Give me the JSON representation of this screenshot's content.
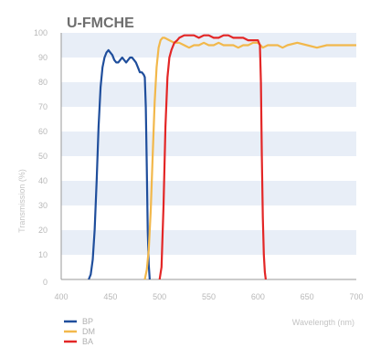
{
  "chart_data": {
    "type": "line",
    "title": "U-FMCHE",
    "xlabel": "Wavelength (nm)",
    "ylabel": "Transmission (%)",
    "xlim": [
      400,
      700
    ],
    "ylim": [
      0,
      100
    ],
    "x_ticks": [
      "400",
      "450",
      "500",
      "550",
      "600",
      "650",
      "700"
    ],
    "y_ticks": [
      "0",
      "10",
      "20",
      "30",
      "40",
      "50",
      "60",
      "70",
      "80",
      "90",
      "100"
    ],
    "y_label_0": "0",
    "grid": "alternating horizontal bands",
    "legend_position": "bottom-left",
    "series": [
      {
        "name": "BP",
        "color": "#1f4e9c",
        "points": [
          [
            428,
            0
          ],
          [
            430,
            2
          ],
          [
            432,
            8
          ],
          [
            434,
            20
          ],
          [
            436,
            40
          ],
          [
            438,
            62
          ],
          [
            440,
            78
          ],
          [
            442,
            86
          ],
          [
            444,
            90
          ],
          [
            446,
            92
          ],
          [
            448,
            93
          ],
          [
            450,
            92
          ],
          [
            452,
            91
          ],
          [
            454,
            89
          ],
          [
            456,
            88
          ],
          [
            458,
            88
          ],
          [
            460,
            89
          ],
          [
            462,
            90
          ],
          [
            464,
            89
          ],
          [
            466,
            88
          ],
          [
            468,
            89
          ],
          [
            470,
            90
          ],
          [
            472,
            90
          ],
          [
            474,
            89
          ],
          [
            476,
            88
          ],
          [
            478,
            86
          ],
          [
            480,
            84
          ],
          [
            482,
            84
          ],
          [
            484,
            83
          ],
          [
            485,
            82
          ],
          [
            486,
            70
          ],
          [
            487,
            45
          ],
          [
            488,
            20
          ],
          [
            489,
            6
          ],
          [
            490,
            0
          ]
        ]
      },
      {
        "name": "DM",
        "color": "#f2b84b",
        "points": [
          [
            485,
            0
          ],
          [
            487,
            4
          ],
          [
            489,
            12
          ],
          [
            491,
            28
          ],
          [
            493,
            50
          ],
          [
            495,
            72
          ],
          [
            497,
            86
          ],
          [
            499,
            94
          ],
          [
            501,
            97
          ],
          [
            503,
            98
          ],
          [
            505,
            98
          ],
          [
            510,
            97
          ],
          [
            515,
            96
          ],
          [
            520,
            96
          ],
          [
            525,
            95
          ],
          [
            530,
            94
          ],
          [
            535,
            95
          ],
          [
            540,
            95
          ],
          [
            545,
            96
          ],
          [
            550,
            95
          ],
          [
            555,
            95
          ],
          [
            560,
            96
          ],
          [
            565,
            95
          ],
          [
            570,
            95
          ],
          [
            575,
            95
          ],
          [
            580,
            94
          ],
          [
            585,
            95
          ],
          [
            590,
            95
          ],
          [
            595,
            96
          ],
          [
            600,
            96
          ],
          [
            605,
            94
          ],
          [
            610,
            95
          ],
          [
            615,
            95
          ],
          [
            620,
            95
          ],
          [
            625,
            94
          ],
          [
            630,
            95
          ],
          [
            640,
            96
          ],
          [
            650,
            95
          ],
          [
            660,
            94
          ],
          [
            670,
            95
          ],
          [
            680,
            95
          ],
          [
            690,
            95
          ],
          [
            700,
            95
          ]
        ]
      },
      {
        "name": "BA",
        "color": "#e32626",
        "points": [
          [
            500,
            0
          ],
          [
            502,
            5
          ],
          [
            504,
            30
          ],
          [
            506,
            62
          ],
          [
            508,
            82
          ],
          [
            510,
            90
          ],
          [
            512,
            93
          ],
          [
            515,
            96
          ],
          [
            518,
            97
          ],
          [
            520,
            98
          ],
          [
            525,
            99
          ],
          [
            530,
            99
          ],
          [
            535,
            99
          ],
          [
            540,
            98
          ],
          [
            545,
            99
          ],
          [
            550,
            99
          ],
          [
            555,
            98
          ],
          [
            560,
            98
          ],
          [
            565,
            99
          ],
          [
            570,
            99
          ],
          [
            575,
            98
          ],
          [
            580,
            98
          ],
          [
            585,
            98
          ],
          [
            590,
            97
          ],
          [
            595,
            97
          ],
          [
            600,
            97
          ],
          [
            602,
            95
          ],
          [
            603,
            80
          ],
          [
            604,
            50
          ],
          [
            605,
            25
          ],
          [
            606,
            10
          ],
          [
            607,
            3
          ],
          [
            608,
            0
          ]
        ]
      }
    ]
  }
}
